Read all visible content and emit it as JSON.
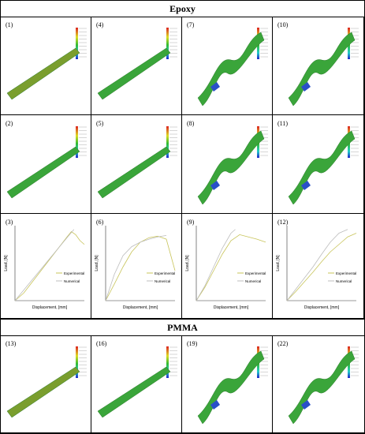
{
  "headers": {
    "top": "Epoxy",
    "middle": "PMMA"
  },
  "panel_labels": [
    "(1)",
    "(4)",
    "(7)",
    "(10)",
    "(2)",
    "(5)",
    "(8)",
    "(11)",
    "(3)",
    "(6)",
    "(9)",
    "(12)",
    "(13)",
    "(16)",
    "(19)",
    "(22)"
  ],
  "chart_data": [
    {
      "type": "line",
      "xlabel": "Displacement, [mm]",
      "ylabel": "Load, [N]",
      "series": [
        {
          "name": "Experimental",
          "x": [
            0,
            1,
            2,
            3,
            4,
            5,
            6,
            6.5,
            7,
            7.5,
            8
          ],
          "y": [
            0,
            10,
            25,
            40,
            55,
            70,
            85,
            92,
            88,
            80,
            75
          ]
        },
        {
          "name": "Numerical",
          "x": [
            0,
            1,
            2,
            3,
            4,
            5,
            6,
            6.8
          ],
          "y": [
            0,
            14,
            28,
            42,
            56,
            70,
            84,
            95
          ]
        }
      ]
    },
    {
      "type": "line",
      "xlabel": "Displacement, [mm]",
      "ylabel": "Load, [N]",
      "series": [
        {
          "name": "Experimental",
          "x": [
            0,
            1,
            2,
            3,
            4,
            5,
            6,
            7,
            8
          ],
          "y": [
            0,
            22,
            45,
            65,
            78,
            84,
            86,
            82,
            40
          ]
        },
        {
          "name": "Numerical",
          "x": [
            0,
            1,
            2,
            3,
            4,
            5,
            6,
            7
          ],
          "y": [
            0,
            35,
            60,
            72,
            78,
            82,
            85,
            87
          ]
        }
      ]
    },
    {
      "type": "line",
      "xlabel": "Displacement, [mm]",
      "ylabel": "Load, [N]",
      "series": [
        {
          "name": "Experimental",
          "x": [
            0,
            1,
            2,
            3,
            4,
            5,
            6,
            7,
            8
          ],
          "y": [
            0,
            18,
            40,
            62,
            80,
            88,
            85,
            82,
            78
          ]
        },
        {
          "name": "Numerical",
          "x": [
            0,
            1,
            2,
            3,
            4,
            4.5
          ],
          "y": [
            0,
            20,
            45,
            70,
            90,
            95
          ]
        }
      ]
    },
    {
      "type": "line",
      "xlabel": "Displacement, [mm]",
      "ylabel": "Load, [N]",
      "series": [
        {
          "name": "Experimental",
          "x": [
            0,
            1,
            2,
            3,
            4,
            5,
            6,
            7,
            8
          ],
          "y": [
            0,
            12,
            25,
            38,
            52,
            65,
            75,
            85,
            90
          ]
        },
        {
          "name": "Numerical",
          "x": [
            0,
            1,
            2,
            3,
            4,
            5,
            6,
            7
          ],
          "y": [
            0,
            15,
            30,
            45,
            62,
            78,
            90,
            95
          ]
        }
      ]
    }
  ],
  "colors": {
    "exp": "#c8c45a",
    "num": "#bcbcbc"
  }
}
